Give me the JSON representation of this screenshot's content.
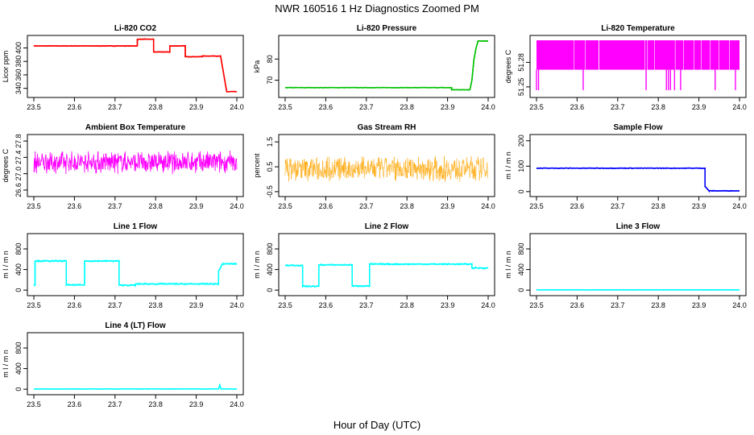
{
  "title": "NWR  160516  1 Hz Diagnostics Zoomed PM",
  "xlabel": "Hour of Day (UTC)",
  "chart_data": [
    {
      "type": "line",
      "title": "Li-820 CO2",
      "ylabel": "Licor ppm",
      "color": "#ff0000",
      "xlim": [
        23.5,
        24.0
      ],
      "ylim": [
        330,
        415
      ],
      "xticks": [
        "23.5",
        "23.6",
        "23.7",
        "23.8",
        "23.9",
        "24.0"
      ],
      "yticks": [
        "340",
        "360",
        "380",
        "400"
      ],
      "noise": 0.4,
      "series": [
        {
          "x": [
            23.5,
            23.755,
            23.755,
            23.795,
            23.795,
            23.835,
            23.835,
            23.873,
            23.873,
            23.915,
            23.915,
            23.96,
            23.975,
            24.0
          ],
          "y": [
            403,
            403,
            413,
            413,
            394,
            394,
            403,
            403,
            387,
            387,
            388,
            388,
            335,
            335
          ]
        }
      ]
    },
    {
      "type": "line",
      "title": "Li-820 Pressure",
      "ylabel": "kPa",
      "color": "#00c000",
      "xlim": [
        23.5,
        24.0
      ],
      "ylim": [
        63,
        90
      ],
      "xticks": [
        "23.5",
        "23.6",
        "23.7",
        "23.8",
        "23.9",
        "24.0"
      ],
      "yticks": [
        "70",
        "80"
      ],
      "noise": 0.1,
      "series": [
        {
          "x": [
            23.5,
            23.91,
            23.91,
            23.955,
            23.96,
            23.965,
            23.97,
            23.975,
            24.0
          ],
          "y": [
            66.5,
            66.5,
            65.5,
            65.5,
            70,
            80,
            85,
            88.5,
            88.5
          ]
        }
      ]
    },
    {
      "type": "line",
      "title": "Li-820 Temperature",
      "ylabel": "degrees C",
      "color": "#ff00ff",
      "style": "band",
      "xlim": [
        23.5,
        24.0
      ],
      "ylim": [
        51.24,
        51.31
      ],
      "xticks": [
        "23.5",
        "23.6",
        "23.7",
        "23.8",
        "23.9",
        "24.0"
      ],
      "yticks": [
        "51.25",
        "51.28"
      ],
      "band": [
        51.271,
        51.307
      ],
      "drops_x": [
        23.5,
        23.505,
        23.615,
        23.77,
        23.82,
        23.825,
        23.83,
        23.84,
        23.855,
        23.94,
        23.99
      ],
      "drops_to": 51.246
    },
    {
      "type": "line",
      "title": "Ambient Box Temperature",
      "ylabel": "degrees C",
      "color": "#ff00ff",
      "style": "noise",
      "xlim": [
        23.5,
        24.0
      ],
      "ylim": [
        26.5,
        27.9
      ],
      "xticks": [
        "23.5",
        "23.6",
        "23.7",
        "23.8",
        "23.9",
        "24.0"
      ],
      "yticks": [
        "26.6",
        "27.0",
        "27.4",
        "27.8"
      ],
      "mean": 27.28,
      "amp": 0.3
    },
    {
      "type": "line",
      "title": "Gas Stream RH",
      "ylabel": "percent",
      "color": "#ffa500",
      "style": "noise",
      "dotted": true,
      "xlim": [
        23.5,
        24.0
      ],
      "ylim": [
        -0.6,
        1.7
      ],
      "xticks": [
        "23.5",
        "23.6",
        "23.7",
        "23.8",
        "23.9",
        "24.0"
      ],
      "yticks": [
        "-0.5",
        "0.5",
        "1.5"
      ],
      "mean": 0.42,
      "amp": 0.55
    },
    {
      "type": "line",
      "title": "Sample Flow",
      "ylabel": "m l / m n",
      "color": "#0000ff",
      "xlim": [
        23.5,
        24.0
      ],
      "ylim": [
        -10,
        215
      ],
      "xticks": [
        "23.5",
        "23.6",
        "23.7",
        "23.8",
        "23.9",
        "24.0"
      ],
      "yticks": [
        "0",
        "100",
        "200"
      ],
      "noise": 1.2,
      "series": [
        {
          "x": [
            23.5,
            23.915,
            23.915,
            23.925,
            24.0
          ],
          "y": [
            92,
            92,
            20,
            3,
            3
          ]
        }
      ]
    },
    {
      "type": "line",
      "title": "Line 1 Flow",
      "ylabel": "m l / m n",
      "color": "#00ffff",
      "xlim": [
        23.5,
        24.0
      ],
      "ylim": [
        -60,
        1050
      ],
      "xticks": [
        "23.5",
        "23.6",
        "23.7",
        "23.8",
        "23.9",
        "24.0"
      ],
      "yticks": [
        "0",
        "400",
        "800"
      ],
      "noise": 12,
      "series": [
        {
          "x": [
            23.5,
            23.503,
            23.503,
            23.58,
            23.58,
            23.625,
            23.625,
            23.71,
            23.71,
            23.75,
            23.75,
            23.955,
            23.955,
            23.965,
            24.0
          ],
          "y": [
            100,
            100,
            565,
            565,
            100,
            100,
            565,
            565,
            95,
            95,
            120,
            120,
            370,
            510,
            510
          ]
        }
      ]
    },
    {
      "type": "line",
      "title": "Line 2 Flow",
      "ylabel": "m l / m n",
      "color": "#00ffff",
      "xlim": [
        23.5,
        24.0
      ],
      "ylim": [
        -60,
        1050
      ],
      "xticks": [
        "23.5",
        "23.6",
        "23.7",
        "23.8",
        "23.9",
        "24.0"
      ],
      "yticks": [
        "0",
        "400",
        "800"
      ],
      "noise": 12,
      "series": [
        {
          "x": [
            23.5,
            23.543,
            23.543,
            23.583,
            23.583,
            23.665,
            23.665,
            23.708,
            23.708,
            23.96,
            23.96,
            24.0
          ],
          "y": [
            480,
            480,
            75,
            75,
            490,
            490,
            80,
            80,
            505,
            505,
            430,
            430
          ]
        }
      ]
    },
    {
      "type": "line",
      "title": "Line 3 Flow",
      "ylabel": "m l / m n",
      "color": "#00ffff",
      "xlim": [
        23.5,
        24.0
      ],
      "ylim": [
        -60,
        1050
      ],
      "xticks": [
        "23.5",
        "23.6",
        "23.7",
        "23.8",
        "23.9",
        "24.0"
      ],
      "yticks": [
        "0",
        "400",
        "800"
      ],
      "noise": 2,
      "series": [
        {
          "x": [
            23.5,
            24.0
          ],
          "y": [
            5,
            5
          ]
        }
      ]
    },
    {
      "type": "line",
      "title": "Line 4 (LT) Flow",
      "ylabel": "m l / m n",
      "color": "#00ffff",
      "xlim": [
        23.5,
        24.0
      ],
      "ylim": [
        -60,
        1050
      ],
      "xticks": [
        "23.5",
        "23.6",
        "23.7",
        "23.8",
        "23.9",
        "24.0"
      ],
      "yticks": [
        "0",
        "400",
        "800"
      ],
      "noise": 2,
      "series": [
        {
          "x": [
            23.5,
            23.955,
            23.958,
            23.961,
            24.0
          ],
          "y": [
            5,
            5,
            80,
            5,
            5
          ]
        }
      ]
    }
  ]
}
